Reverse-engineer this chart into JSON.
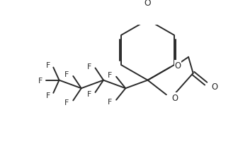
{
  "bg_color": "#ffffff",
  "line_color": "#2a2a2a",
  "line_width": 1.4,
  "font_size": 7.8,
  "fig_width": 3.36,
  "fig_height": 2.01,
  "dpi": 100,
  "xlim": [
    0,
    336
  ],
  "ylim": [
    0,
    201
  ]
}
